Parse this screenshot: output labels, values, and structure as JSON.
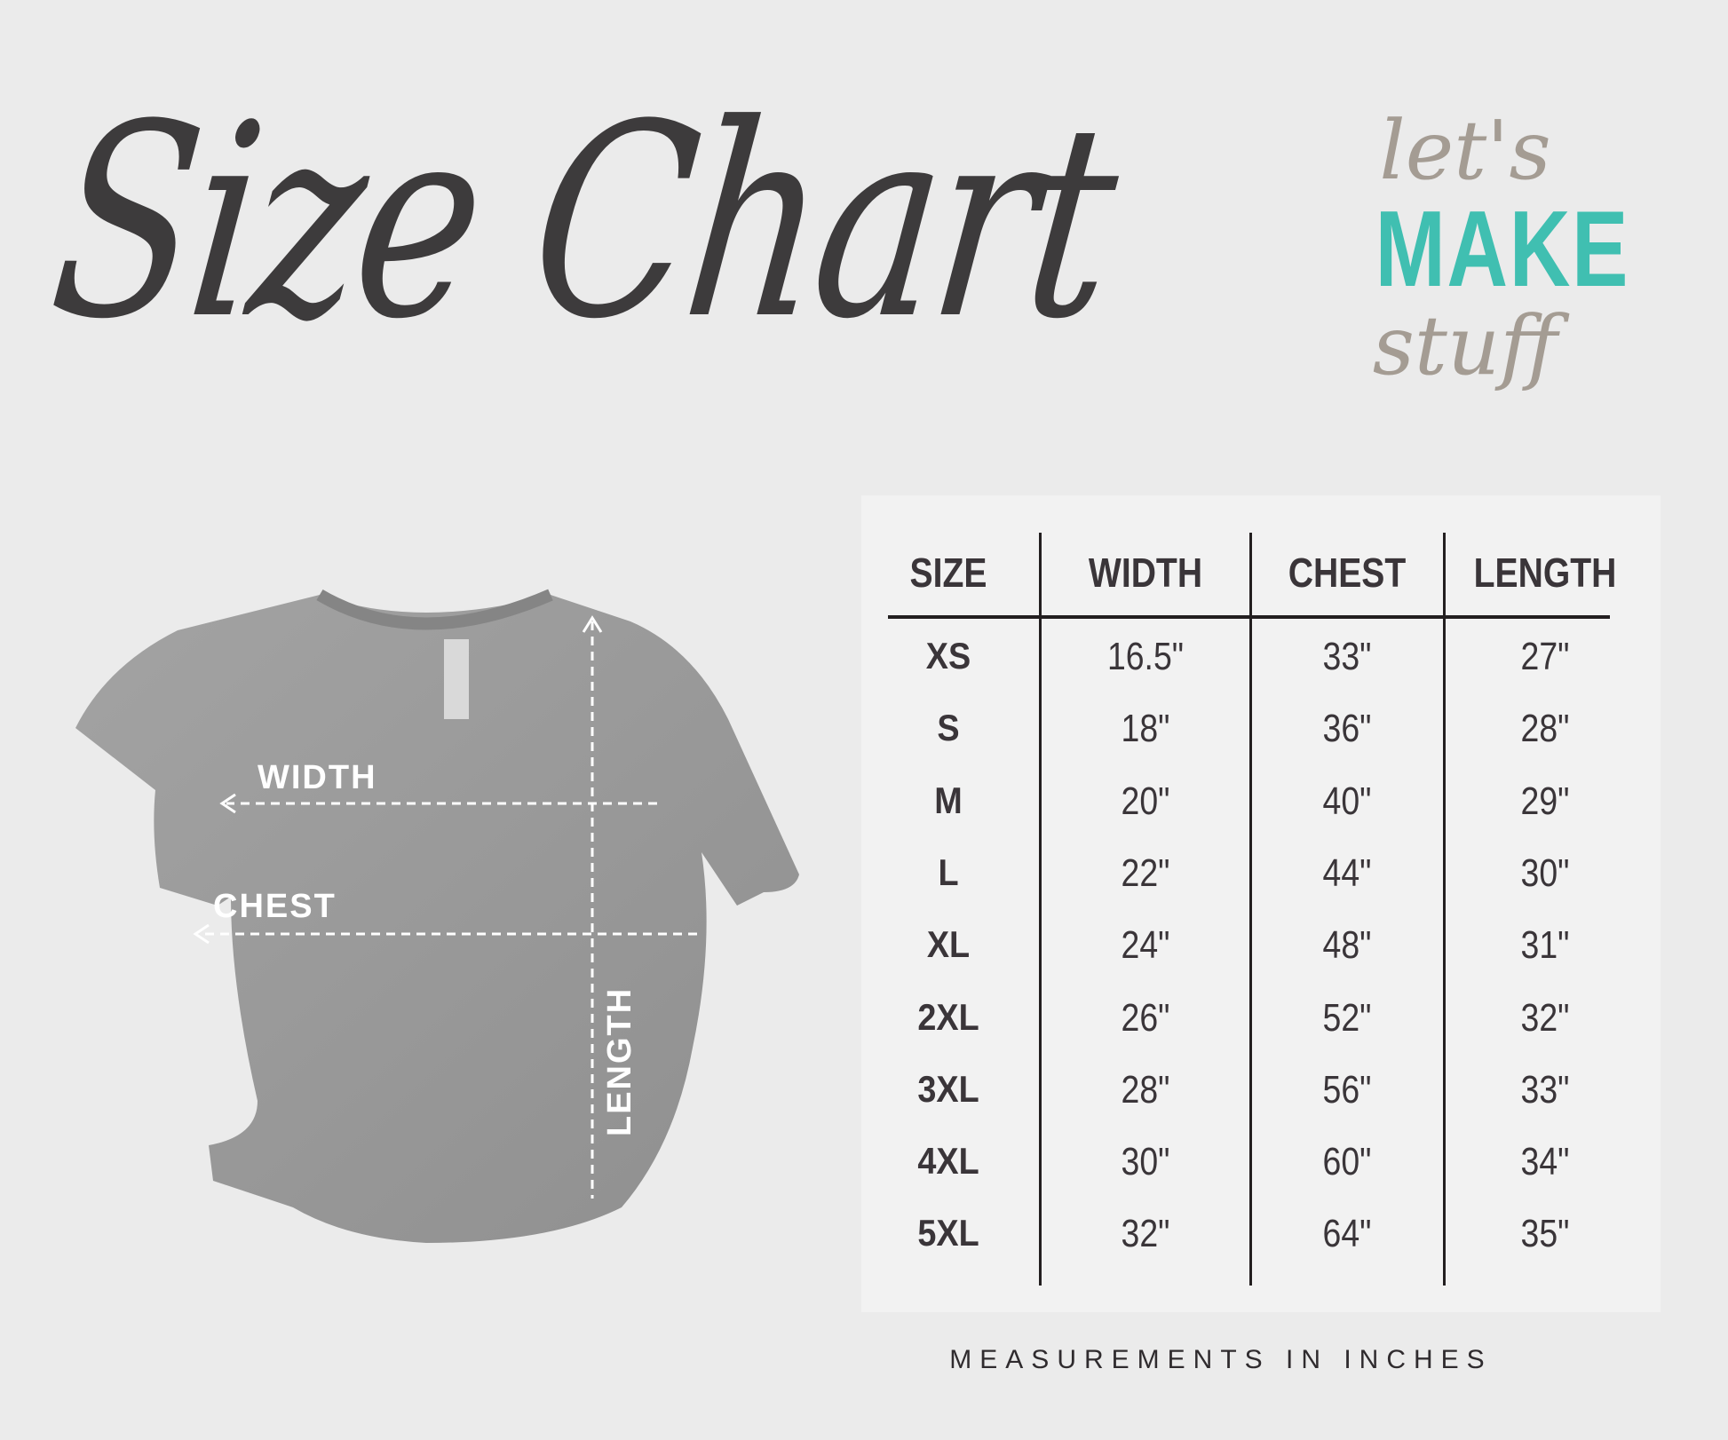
{
  "title": "Size Chart",
  "logo": {
    "line1": "let's",
    "line2": "MAKE",
    "line3": "stuff"
  },
  "colors": {
    "background": "#ebebeb",
    "panel": "#f2f2f2",
    "text": "#3a3539",
    "logo_accent": "#40bfb1",
    "logo_muted": "#a49c93",
    "shirt": "#9a9a9a"
  },
  "shirt_labels": {
    "width": "WIDTH",
    "chest": "CHEST",
    "length": "LENGTH"
  },
  "table": {
    "headers": [
      "SIZE",
      "WIDTH",
      "CHEST",
      "LENGTH"
    ],
    "rows": [
      [
        "XS",
        "16.5\"",
        "33\"",
        "27\""
      ],
      [
        "S",
        "18\"",
        "36\"",
        "28\""
      ],
      [
        "M",
        "20\"",
        "40\"",
        "29\""
      ],
      [
        "L",
        "22\"",
        "44\"",
        "30\""
      ],
      [
        "XL",
        "24\"",
        "48\"",
        "31\""
      ],
      [
        "2XL",
        "26\"",
        "52\"",
        "32\""
      ],
      [
        "3XL",
        "28\"",
        "56\"",
        "33\""
      ],
      [
        "4XL",
        "30\"",
        "60\"",
        "34\""
      ],
      [
        "5XL",
        "32\"",
        "64\"",
        "35\""
      ]
    ]
  },
  "footer": "MEASUREMENTS IN INCHES"
}
